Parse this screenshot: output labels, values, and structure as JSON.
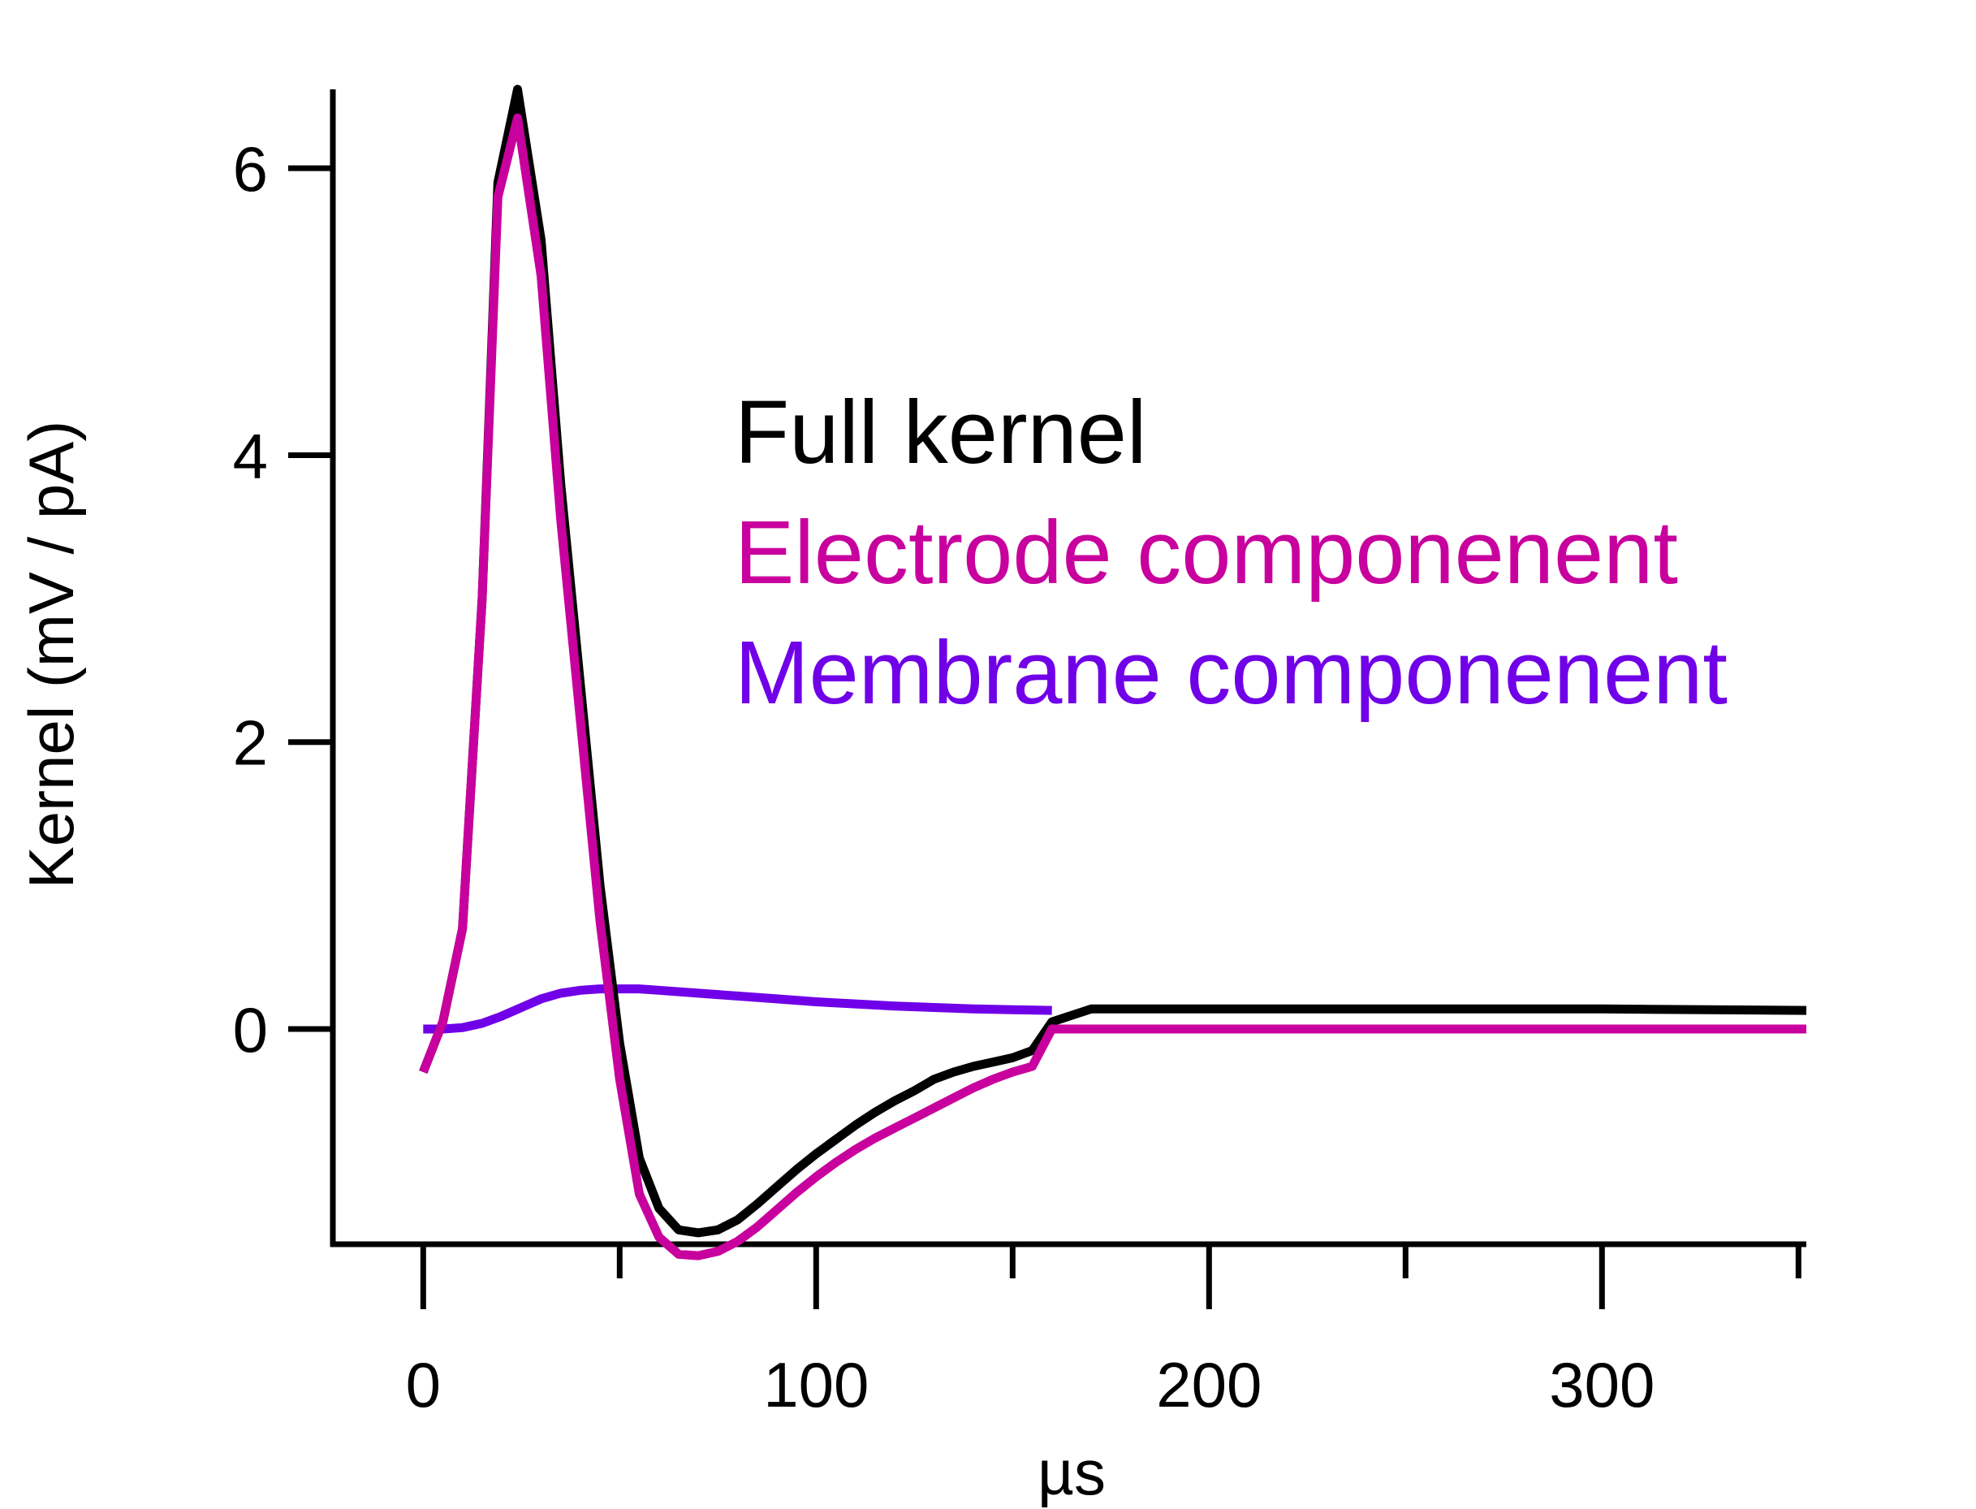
{
  "chart_data": {
    "type": "line",
    "title": "",
    "xlabel": "µs",
    "ylabel": "Kernel (mV / pA)",
    "xlim": [
      -23,
      352
    ],
    "ylim": [
      -1.5,
      6.55
    ],
    "xticks": [
      0,
      50,
      100,
      150,
      200,
      250,
      300,
      350
    ],
    "xtick_labels": [
      {
        "value": 0,
        "label": "0"
      },
      {
        "value": 100,
        "label": "100"
      },
      {
        "value": 200,
        "label": "200"
      },
      {
        "value": 300,
        "label": "300"
      }
    ],
    "yticks": [
      {
        "value": 0,
        "label": "0"
      },
      {
        "value": 2,
        "label": "2"
      },
      {
        "value": 4,
        "label": "4"
      },
      {
        "value": 6,
        "label": "6"
      }
    ],
    "grid": false,
    "legend_position": "top-right",
    "series": [
      {
        "name": "Membrane componenent",
        "color": "#7000E8",
        "x": [
          0,
          5,
          10,
          15,
          20,
          25,
          30,
          35,
          40,
          45,
          50,
          55,
          60,
          70,
          80,
          90,
          100,
          110,
          120,
          130,
          140,
          150,
          160
        ],
        "y": [
          0,
          0,
          0.01,
          0.04,
          0.09,
          0.15,
          0.21,
          0.25,
          0.27,
          0.28,
          0.28,
          0.28,
          0.27,
          0.25,
          0.23,
          0.21,
          0.19,
          0.175,
          0.16,
          0.15,
          0.14,
          0.135,
          0.13
        ]
      },
      {
        "name": "Full kernel",
        "color": "#000000",
        "x": [
          0,
          5,
          10,
          15,
          19,
          24,
          30,
          35,
          40,
          45,
          50,
          55,
          60,
          65,
          70,
          75,
          80,
          85,
          90,
          95,
          100,
          105,
          110,
          115,
          120,
          125,
          130,
          135,
          140,
          145,
          150,
          155,
          160,
          170,
          200,
          250,
          300,
          352
        ],
        "y": [
          -0.3,
          0.05,
          0.7,
          3.0,
          5.9,
          6.55,
          5.5,
          3.8,
          2.4,
          1.0,
          -0.1,
          -0.9,
          -1.25,
          -1.4,
          -1.42,
          -1.4,
          -1.33,
          -1.22,
          -1.1,
          -0.98,
          -0.87,
          -0.77,
          -0.67,
          -0.58,
          -0.5,
          -0.43,
          -0.35,
          -0.3,
          -0.26,
          -0.23,
          -0.2,
          -0.15,
          0.05,
          0.14,
          0.14,
          0.14,
          0.14,
          0.13
        ]
      },
      {
        "name": "Electrode componenent",
        "color": "#C8009E",
        "x": [
          0,
          5,
          10,
          15,
          19,
          24,
          30,
          35,
          40,
          45,
          50,
          55,
          60,
          65,
          70,
          75,
          80,
          85,
          90,
          95,
          100,
          105,
          110,
          115,
          120,
          125,
          130,
          135,
          140,
          145,
          150,
          155,
          160,
          170,
          200,
          250,
          300,
          352
        ],
        "y": [
          -0.3,
          0.05,
          0.7,
          3.0,
          5.8,
          6.35,
          5.25,
          3.55,
          2.15,
          0.75,
          -0.35,
          -1.15,
          -1.45,
          -1.57,
          -1.58,
          -1.55,
          -1.48,
          -1.38,
          -1.26,
          -1.14,
          -1.03,
          -0.93,
          -0.84,
          -0.76,
          -0.69,
          -0.62,
          -0.55,
          -0.48,
          -0.41,
          -0.35,
          -0.3,
          -0.26,
          0,
          0,
          0,
          0,
          0,
          0
        ]
      }
    ]
  }
}
